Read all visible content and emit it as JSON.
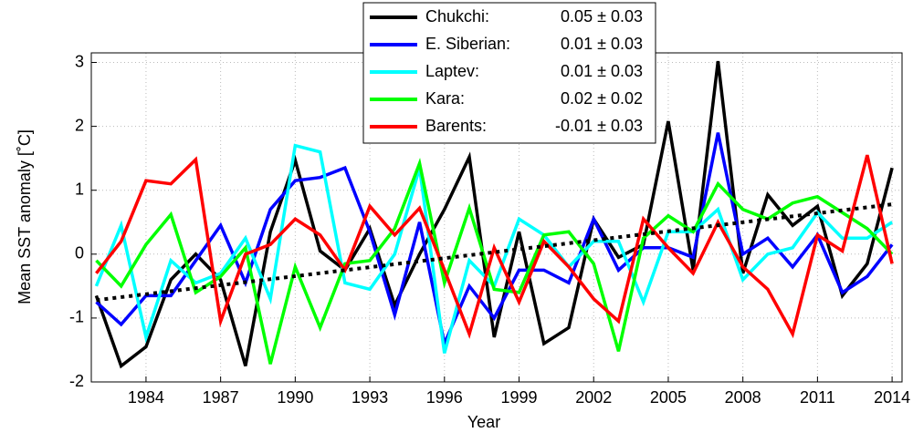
{
  "chart_data": {
    "type": "line",
    "x_label": "Year",
    "y_label": "Mean SST anomaly [˚C]",
    "x": [
      1982,
      1983,
      1984,
      1985,
      1986,
      1987,
      1988,
      1989,
      1990,
      1991,
      1992,
      1993,
      1994,
      1995,
      1996,
      1997,
      1998,
      1999,
      2000,
      2001,
      2002,
      2003,
      2004,
      2005,
      2006,
      2007,
      2008,
      2009,
      2010,
      2011,
      2012,
      2013,
      2014
    ],
    "series": [
      {
        "name": "Chukchi:",
        "trend_label": "0.05 ± 0.03",
        "color": "#000000",
        "values": [
          -0.65,
          -1.75,
          -1.45,
          -0.4,
          0.0,
          -0.4,
          -1.75,
          0.35,
          1.47,
          0.05,
          -0.25,
          0.4,
          -0.8,
          0.0,
          0.7,
          1.52,
          -1.3,
          0.35,
          -1.4,
          -1.15,
          0.55,
          -0.05,
          0.15,
          2.08,
          -0.25,
          3.02,
          -0.3,
          0.93,
          0.45,
          0.75,
          -0.65,
          -0.15,
          1.35
        ]
      },
      {
        "name": "E. Siberian:",
        "trend_label": "0.01 ± 0.03",
        "color": "#0000ff",
        "values": [
          -0.75,
          -1.1,
          -0.65,
          -0.65,
          -0.1,
          0.45,
          -0.45,
          0.7,
          1.15,
          1.2,
          1.35,
          0.35,
          -0.95,
          0.5,
          -1.4,
          -0.5,
          -1.0,
          -0.25,
          -0.25,
          -0.45,
          0.55,
          -0.25,
          0.1,
          0.1,
          -0.05,
          1.9,
          0.0,
          0.25,
          -0.2,
          0.3,
          -0.6,
          -0.35,
          0.15
        ]
      },
      {
        "name": "Laptev:",
        "trend_label": "0.01 ± 0.03",
        "color": "#00ffff",
        "values": [
          -0.5,
          0.45,
          -1.3,
          -0.1,
          -0.45,
          -0.3,
          0.25,
          -0.7,
          1.7,
          1.6,
          -0.45,
          -0.55,
          0.0,
          1.35,
          -1.55,
          -0.1,
          -0.5,
          0.55,
          0.3,
          -0.2,
          0.2,
          0.2,
          -0.75,
          0.35,
          0.35,
          0.7,
          -0.4,
          0.0,
          0.1,
          0.65,
          0.25,
          0.25,
          0.5
        ]
      },
      {
        "name": "Kara:",
        "trend_label": "0.02 ± 0.02",
        "color": "#00ff00",
        "values": [
          -0.1,
          -0.5,
          0.15,
          0.62,
          -0.6,
          -0.35,
          0.1,
          -1.72,
          -0.2,
          -1.15,
          -0.15,
          -0.1,
          0.4,
          1.42,
          -0.45,
          0.72,
          -0.55,
          -0.6,
          0.3,
          0.35,
          -0.15,
          -1.52,
          0.25,
          0.6,
          0.35,
          1.1,
          0.7,
          0.55,
          0.8,
          0.9,
          0.65,
          0.4,
          0.0
        ]
      },
      {
        "name": "Barents:",
        "trend_label": "-0.01 ± 0.03",
        "color": "#ff0000",
        "values": [
          -0.3,
          0.2,
          1.15,
          1.1,
          1.48,
          -1.05,
          0.0,
          0.15,
          0.55,
          0.3,
          -0.25,
          0.75,
          0.3,
          0.72,
          -0.25,
          -1.25,
          0.1,
          -0.75,
          0.2,
          -0.2,
          -0.7,
          -1.05,
          0.55,
          0.1,
          -0.3,
          0.5,
          -0.2,
          -0.55,
          -1.25,
          0.3,
          0.05,
          1.55,
          -0.15
        ]
      }
    ],
    "trend": {
      "color": "#000000",
      "x": [
        1982,
        2014
      ],
      "values": [
        -0.72,
        0.78
      ]
    },
    "xlim": [
      1981.8,
      2014.4
    ],
    "ylim": [
      -2,
      3.15
    ],
    "xticks": [
      1984,
      1987,
      1990,
      1993,
      1996,
      1999,
      2002,
      2005,
      2008,
      2011,
      2014
    ],
    "yticks": [
      -2,
      -1,
      0,
      1,
      2,
      3
    ],
    "grid": true
  }
}
